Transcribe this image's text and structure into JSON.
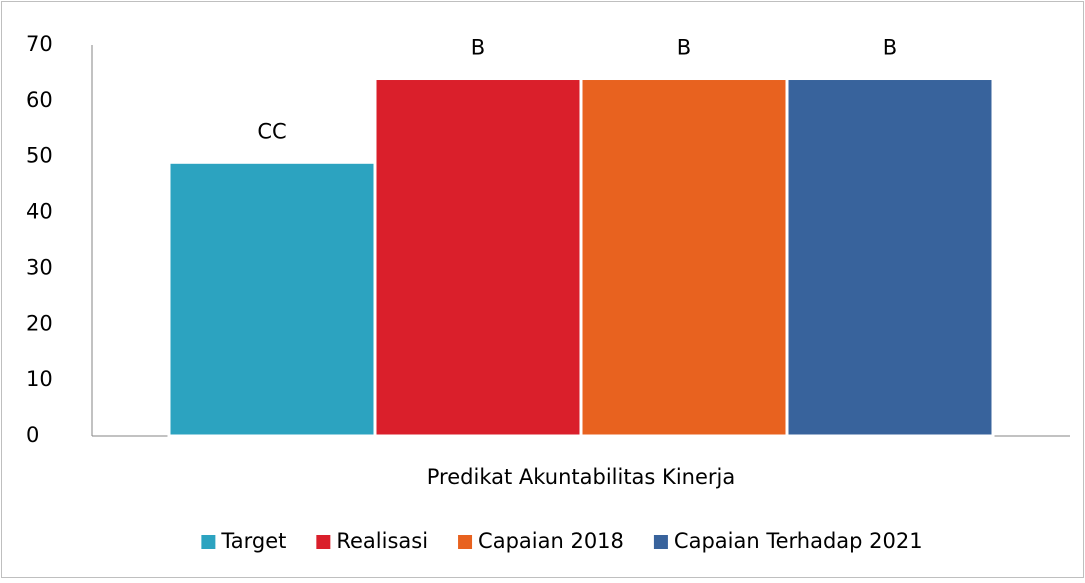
{
  "chart_data": {
    "type": "bar",
    "categories": [
      "Predikat Akuntabilitas Kinerja"
    ],
    "series": [
      {
        "name": "Target",
        "color": "#2ca3c0",
        "values": [
          49
        ],
        "value_labels": [
          "CC"
        ]
      },
      {
        "name": "Realisasi",
        "color": "#da1f2b",
        "values": [
          64
        ],
        "value_labels": [
          "B"
        ]
      },
      {
        "name": "Capaian 2018",
        "color": "#e8621f",
        "values": [
          64
        ],
        "value_labels": [
          "B"
        ]
      },
      {
        "name": "Capaian Terhadap 2021",
        "color": "#38639c",
        "values": [
          64
        ],
        "value_labels": [
          "B"
        ]
      }
    ],
    "ylim": [
      0,
      70
    ],
    "yticks": [
      0,
      10,
      20,
      30,
      40,
      50,
      60,
      70
    ],
    "grid": false,
    "legend": "bottom"
  }
}
